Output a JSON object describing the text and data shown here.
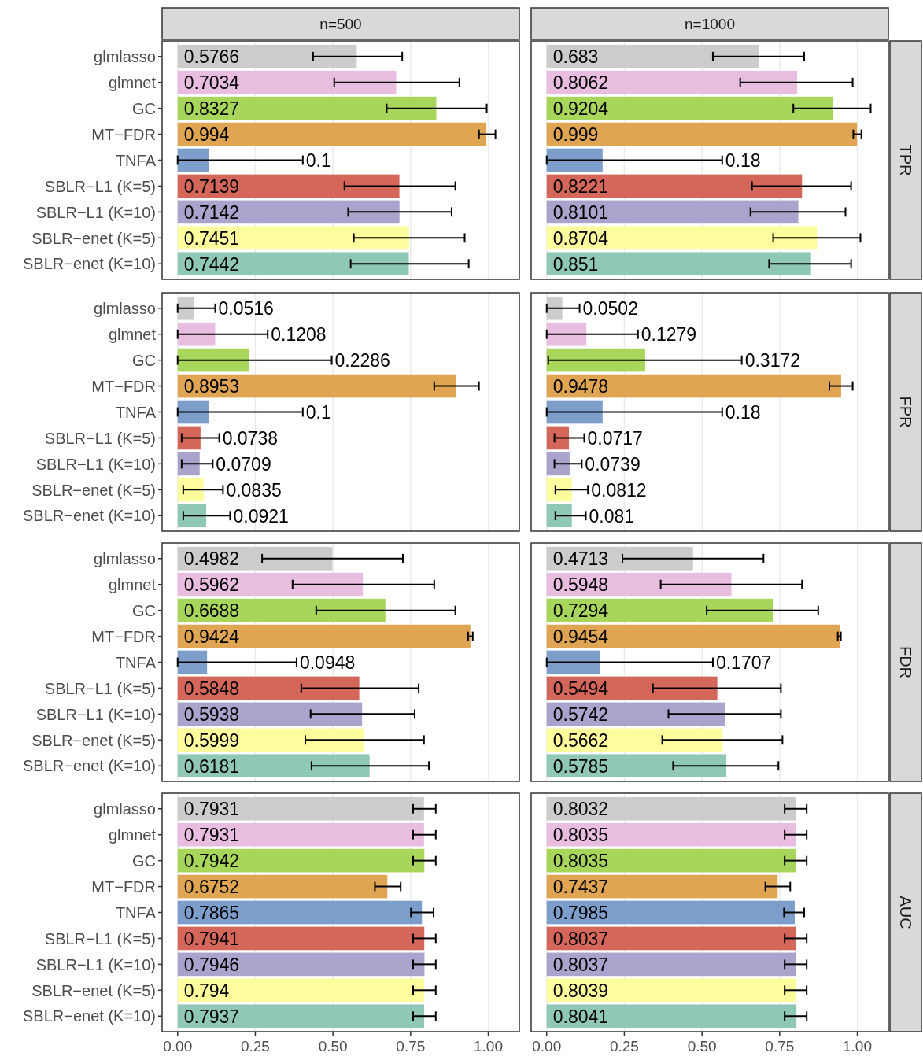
{
  "chart_data": [
    {
      "type": "bar",
      "orientation": "horizontal",
      "title": "n=500",
      "categories": [
        "glmlasso",
        "glmnet",
        "GC",
        "MT−FDR",
        "TNFA",
        "SBLR−L1 (K=5)",
        "SBLR−L1 (K=10)",
        "SBLR−enet (K=5)",
        "SBLR−enet (K=10)"
      ],
      "values": [
        0.5766,
        0.7034,
        0.8327,
        0.994,
        0.1,
        0.7139,
        0.7142,
        0.7451,
        0.7442
      ],
      "value_labels": [
        "0.5766",
        "0.7034",
        "0.8327",
        "0.994",
        null,
        "0.7139",
        "0.7142",
        "0.7451",
        "0.7442"
      ],
      "annotations": [
        {
          "text": "0.1",
          "x": 0.403,
          "y": "TNFA"
        }
      ],
      "colors": [
        "#cccccc",
        "#e8bde0",
        "#a8d65a",
        "#e0a552",
        "#7d9dcb",
        "#d4675a",
        "#aaa4cc",
        "#fdfd9e",
        "#90c8b8"
      ],
      "errors": [
        [
          0.436,
          0.723
        ],
        [
          0.504,
          0.907
        ],
        [
          0.673,
          0.995
        ],
        [
          0.97,
          1.023
        ],
        [
          0,
          0.403
        ],
        [
          0.537,
          0.894
        ],
        [
          0.549,
          0.882
        ],
        [
          0.567,
          0.924
        ],
        [
          0.557,
          0.937
        ]
      ],
      "xlim": [
        -0.05,
        1.1
      ],
      "xticks": [
        {
          "value": 0,
          "label": null
        },
        {
          "value": 0.25,
          "label": null
        },
        {
          "value": 0.5,
          "label": null
        },
        {
          "value": 0.75,
          "label": null
        },
        {
          "value": 1,
          "label": null
        }
      ],
      "grid": "x",
      "tick_labels": "y"
    },
    {
      "type": "bar",
      "orientation": "horizontal",
      "title": "n=1000",
      "y2label": "TPR",
      "categories": [
        "glmlasso",
        "glmnet",
        "GC",
        "MT−FDR",
        "TNFA",
        "SBLR−L1 (K=5)",
        "SBLR−L1 (K=10)",
        "SBLR−enet (K=5)",
        "SBLR−enet (K=10)"
      ],
      "values": [
        0.683,
        0.8062,
        0.9204,
        0.999,
        0.18,
        0.8221,
        0.8101,
        0.8704,
        0.851
      ],
      "value_labels": [
        "0.683",
        "0.8062",
        "0.9204",
        "0.999",
        null,
        "0.8221",
        "0.8101",
        "0.8704",
        "0.851"
      ],
      "annotations": [
        {
          "text": "0.18",
          "x": 0.565,
          "y": "TNFA"
        }
      ],
      "colors": [
        "#cccccc",
        "#e8bde0",
        "#a8d65a",
        "#e0a552",
        "#7d9dcb",
        "#d4675a",
        "#aaa4cc",
        "#fdfd9e",
        "#90c8b8"
      ],
      "errors": [
        [
          0.535,
          0.829
        ],
        [
          0.623,
          0.985
        ],
        [
          0.794,
          1.043
        ],
        [
          0.987,
          1.013
        ],
        [
          0,
          0.565
        ],
        [
          0.661,
          0.98
        ],
        [
          0.656,
          0.962
        ],
        [
          0.729,
          1.01
        ],
        [
          0.716,
          0.98
        ]
      ],
      "xlim": [
        -0.05,
        1.1
      ],
      "xticks": [
        {
          "value": 0,
          "label": null
        },
        {
          "value": 0.25,
          "label": null
        },
        {
          "value": 0.5,
          "label": null
        },
        {
          "value": 0.75,
          "label": null
        },
        {
          "value": 1,
          "label": null
        }
      ],
      "grid": "x",
      "tick_labels": false
    },
    {
      "type": "bar",
      "orientation": "horizontal",
      "categories": [
        "glmlasso",
        "glmnet",
        "GC",
        "MT−FDR",
        "TNFA",
        "SBLR−L1 (K=5)",
        "SBLR−L1 (K=10)",
        "SBLR−enet (K=5)",
        "SBLR−enet (K=10)"
      ],
      "values": [
        0.0516,
        0.1208,
        0.2286,
        0.8953,
        0.1,
        0.0738,
        0.0709,
        0.0835,
        0.0921
      ],
      "value_labels": [
        null,
        null,
        null,
        "0.8953",
        null,
        null,
        null,
        null,
        null
      ],
      "annotations": [
        {
          "text": "0.0516",
          "x": 0.121,
          "y": "glmlasso"
        },
        {
          "text": "0.1208",
          "x": 0.29,
          "y": "glmnet"
        },
        {
          "text": "0.2286",
          "x": 0.496,
          "y": "GC"
        },
        {
          "text": "0.1",
          "x": 0.403,
          "y": "TNFA"
        },
        {
          "text": "0.0738",
          "x": 0.134,
          "y": "SBLR−L1 (K=5)"
        },
        {
          "text": "0.0709",
          "x": 0.113,
          "y": "SBLR−L1 (K=10)"
        },
        {
          "text": "0.0835",
          "x": 0.146,
          "y": "SBLR−enet (K=5)"
        },
        {
          "text": "0.0921",
          "x": 0.169,
          "y": "SBLR−enet (K=10)"
        }
      ],
      "colors": [
        "#cccccc",
        "#e8bde0",
        "#a8d65a",
        "#e0a552",
        "#7d9dcb",
        "#d4675a",
        "#aaa4cc",
        "#fdfd9e",
        "#90c8b8"
      ],
      "errors": [
        [
          0,
          0.121
        ],
        [
          0,
          0.29
        ],
        [
          0,
          0.496
        ],
        [
          0.826,
          0.97
        ],
        [
          0,
          0.403
        ],
        [
          0.013,
          0.134
        ],
        [
          0.013,
          0.113
        ],
        [
          0.018,
          0.146
        ],
        [
          0.018,
          0.169
        ]
      ],
      "xlim": [
        -0.05,
        1.1
      ],
      "xticks": [
        {
          "value": 0,
          "label": null
        },
        {
          "value": 0.25,
          "label": null
        },
        {
          "value": 0.5,
          "label": null
        },
        {
          "value": 0.75,
          "label": null
        },
        {
          "value": 1,
          "label": null
        }
      ],
      "grid": "x",
      "tick_labels": "y"
    },
    {
      "type": "bar",
      "orientation": "horizontal",
      "y2label": "FPR",
      "categories": [
        "glmlasso",
        "glmnet",
        "GC",
        "MT−FDR",
        "TNFA",
        "SBLR−L1 (K=5)",
        "SBLR−L1 (K=10)",
        "SBLR−enet (K=5)",
        "SBLR−enet (K=10)"
      ],
      "values": [
        0.0502,
        0.1279,
        0.3172,
        0.9478,
        0.18,
        0.0717,
        0.0739,
        0.0812,
        0.081
      ],
      "value_labels": [
        null,
        null,
        null,
        "0.9478",
        null,
        null,
        null,
        null,
        null
      ],
      "annotations": [
        {
          "text": "0.0502",
          "x": 0.106,
          "y": "glmlasso"
        },
        {
          "text": "0.1279",
          "x": 0.294,
          "y": "glmnet"
        },
        {
          "text": "0.3172",
          "x": 0.628,
          "y": "GC"
        },
        {
          "text": "0.18",
          "x": 0.565,
          "y": "TNFA"
        },
        {
          "text": "0.0717",
          "x": 0.121,
          "y": "SBLR−L1 (K=5)"
        },
        {
          "text": "0.0739",
          "x": 0.113,
          "y": "SBLR−L1 (K=10)"
        },
        {
          "text": "0.0812",
          "x": 0.133,
          "y": "SBLR−enet (K=5)"
        },
        {
          "text": "0.081",
          "x": 0.126,
          "y": "SBLR−enet (K=10)"
        }
      ],
      "colors": [
        "#cccccc",
        "#e8bde0",
        "#a8d65a",
        "#e0a552",
        "#7d9dcb",
        "#d4675a",
        "#aaa4cc",
        "#fdfd9e",
        "#90c8b8"
      ],
      "errors": [
        [
          0,
          0.106
        ],
        [
          0,
          0.294
        ],
        [
          0.005,
          0.628
        ],
        [
          0.91,
          0.985
        ],
        [
          0,
          0.565
        ],
        [
          0.025,
          0.121
        ],
        [
          0.025,
          0.113
        ],
        [
          0.028,
          0.133
        ],
        [
          0.028,
          0.126
        ]
      ],
      "xlim": [
        -0.05,
        1.1
      ],
      "xticks": [
        {
          "value": 0,
          "label": null
        },
        {
          "value": 0.25,
          "label": null
        },
        {
          "value": 0.5,
          "label": null
        },
        {
          "value": 0.75,
          "label": null
        },
        {
          "value": 1,
          "label": null
        }
      ],
      "grid": "x",
      "tick_labels": false
    },
    {
      "type": "bar",
      "orientation": "horizontal",
      "categories": [
        "glmlasso",
        "glmnet",
        "GC",
        "MT−FDR",
        "TNFA",
        "SBLR−L1 (K=5)",
        "SBLR−L1 (K=10)",
        "SBLR−enet (K=5)",
        "SBLR−enet (K=10)"
      ],
      "values": [
        0.4982,
        0.5962,
        0.6688,
        0.9424,
        0.0948,
        0.5848,
        0.5938,
        0.5999,
        0.6181
      ],
      "value_labels": [
        "0.4982",
        "0.5962",
        "0.6688",
        "0.9424",
        null,
        "0.5848",
        "0.5938",
        "0.5999",
        "0.6181"
      ],
      "annotations": [
        {
          "text": "0.0948",
          "x": 0.383,
          "y": "TNFA"
        }
      ],
      "colors": [
        "#cccccc",
        "#e8bde0",
        "#a8d65a",
        "#e0a552",
        "#7d9dcb",
        "#d4675a",
        "#aaa4cc",
        "#fdfd9e",
        "#90c8b8"
      ],
      "errors": [
        [
          0.272,
          0.725
        ],
        [
          0.37,
          0.826
        ],
        [
          0.446,
          0.894
        ],
        [
          0.935,
          0.95
        ],
        [
          0,
          0.383
        ],
        [
          0.398,
          0.776
        ],
        [
          0.428,
          0.763
        ],
        [
          0.411,
          0.793
        ],
        [
          0.431,
          0.809
        ]
      ],
      "xlim": [
        -0.05,
        1.1
      ],
      "xticks": [
        {
          "value": 0,
          "label": null
        },
        {
          "value": 0.25,
          "label": null
        },
        {
          "value": 0.5,
          "label": null
        },
        {
          "value": 0.75,
          "label": null
        },
        {
          "value": 1,
          "label": null
        }
      ],
      "grid": "x",
      "tick_labels": "y"
    },
    {
      "type": "bar",
      "orientation": "horizontal",
      "y2label": "FDR",
      "categories": [
        "glmlasso",
        "glmnet",
        "GC",
        "MT−FDR",
        "TNFA",
        "SBLR−L1 (K=5)",
        "SBLR−L1 (K=10)",
        "SBLR−enet (K=5)",
        "SBLR−enet (K=10)"
      ],
      "values": [
        0.4713,
        0.5948,
        0.7294,
        0.9454,
        0.1707,
        0.5494,
        0.5742,
        0.5662,
        0.5785
      ],
      "value_labels": [
        "0.4713",
        "0.5948",
        "0.7294",
        "0.9454",
        null,
        "0.5494",
        "0.5742",
        "0.5662",
        "0.5785"
      ],
      "annotations": [
        {
          "text": "0.1707",
          "x": 0.535,
          "y": "TNFA"
        }
      ],
      "colors": [
        "#cccccc",
        "#e8bde0",
        "#a8d65a",
        "#e0a552",
        "#7d9dcb",
        "#d4675a",
        "#aaa4cc",
        "#fdfd9e",
        "#90c8b8"
      ],
      "errors": [
        [
          0.244,
          0.698
        ],
        [
          0.367,
          0.822
        ],
        [
          0.515,
          0.874
        ],
        [
          0.937,
          0.947
        ],
        [
          0,
          0.535
        ],
        [
          0.342,
          0.754
        ],
        [
          0.392,
          0.754
        ],
        [
          0.372,
          0.759
        ],
        [
          0.407,
          0.746
        ]
      ],
      "xlim": [
        -0.05,
        1.1
      ],
      "xticks": [
        {
          "value": 0,
          "label": null
        },
        {
          "value": 0.25,
          "label": null
        },
        {
          "value": 0.5,
          "label": null
        },
        {
          "value": 0.75,
          "label": null
        },
        {
          "value": 1,
          "label": null
        }
      ],
      "grid": "x",
      "tick_labels": false
    },
    {
      "type": "bar",
      "orientation": "horizontal",
      "categories": [
        "glmlasso",
        "glmnet",
        "GC",
        "MT−FDR",
        "TNFA",
        "SBLR−L1 (K=5)",
        "SBLR−L1 (K=10)",
        "SBLR−enet (K=5)",
        "SBLR−enet (K=10)"
      ],
      "values": [
        0.7931,
        0.7931,
        0.7942,
        0.6752,
        0.7865,
        0.7941,
        0.7946,
        0.794,
        0.7937
      ],
      "value_labels": [
        "0.7931",
        "0.7931",
        "0.7942",
        "0.6752",
        "0.7865",
        "0.7941",
        "0.7946",
        "0.794",
        "0.7937"
      ],
      "colors": [
        "#cccccc",
        "#e8bde0",
        "#a8d65a",
        "#e0a552",
        "#7d9dcb",
        "#d4675a",
        "#aaa4cc",
        "#fdfd9e",
        "#90c8b8"
      ],
      "errors": [
        [
          0.758,
          0.831
        ],
        [
          0.758,
          0.831
        ],
        [
          0.758,
          0.831
        ],
        [
          0.635,
          0.718
        ],
        [
          0.751,
          0.824
        ],
        [
          0.758,
          0.831
        ],
        [
          0.758,
          0.831
        ],
        [
          0.758,
          0.831
        ],
        [
          0.758,
          0.831
        ]
      ],
      "xlim": [
        -0.05,
        1.1
      ],
      "xticks": [
        {
          "value": 0,
          "label": "0.00"
        },
        {
          "value": 0.25,
          "label": "0.25"
        },
        {
          "value": 0.5,
          "label": "0.50"
        },
        {
          "value": 0.75,
          "label": "0.75"
        },
        {
          "value": 1,
          "label": "1.00"
        }
      ],
      "grid": "x"
    },
    {
      "type": "bar",
      "orientation": "horizontal",
      "y2label": "AUC",
      "categories": [
        "glmlasso",
        "glmnet",
        "GC",
        "MT−FDR",
        "TNFA",
        "SBLR−L1 (K=5)",
        "SBLR−L1 (K=10)",
        "SBLR−enet (K=5)",
        "SBLR−enet (K=10)"
      ],
      "values": [
        0.8032,
        0.8035,
        0.8035,
        0.7437,
        0.7985,
        0.8037,
        0.8037,
        0.8039,
        0.8041
      ],
      "value_labels": [
        "0.8032",
        "0.8035",
        "0.8035",
        "0.7437",
        "0.7985",
        "0.8037",
        "0.8037",
        "0.8039",
        "0.8041"
      ],
      "colors": [
        "#cccccc",
        "#e8bde0",
        "#a8d65a",
        "#e0a552",
        "#7d9dcb",
        "#d4675a",
        "#aaa4cc",
        "#fdfd9e",
        "#90c8b8"
      ],
      "errors": [
        [
          0.766,
          0.837
        ],
        [
          0.766,
          0.837
        ],
        [
          0.766,
          0.837
        ],
        [
          0.704,
          0.784
        ],
        [
          0.764,
          0.829
        ],
        [
          0.766,
          0.837
        ],
        [
          0.766,
          0.837
        ],
        [
          0.766,
          0.837
        ],
        [
          0.766,
          0.837
        ]
      ],
      "xlim": [
        -0.05,
        1.1
      ],
      "xticks": [
        {
          "value": 0,
          "label": "0.00"
        },
        {
          "value": 0.25,
          "label": "0.25"
        },
        {
          "value": 0.5,
          "label": "0.50"
        },
        {
          "value": 0.75,
          "label": "0.75"
        },
        {
          "value": 1,
          "label": "1.00"
        }
      ],
      "grid": "x",
      "tick_labels": "x"
    }
  ]
}
